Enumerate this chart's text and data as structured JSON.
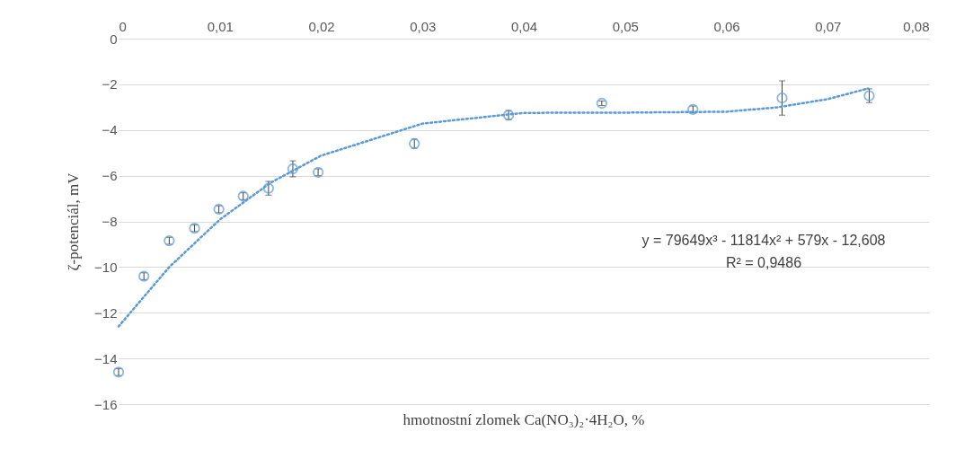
{
  "chart_data": {
    "type": "scatter",
    "xlabel": "hmotnostní zlomek Ca(NO₃)₂·4H₂O, %",
    "ylabel": "ζ-potenciál, mV",
    "x": [
      0,
      0.0025,
      0.005,
      0.0075,
      0.0099,
      0.0123,
      0.0148,
      0.0172,
      0.0197,
      0.0292,
      0.0385,
      0.0477,
      0.0567,
      0.0655,
      0.0741
    ],
    "series": [
      {
        "type": "scatter",
        "color": "#5b9bd5",
        "marker": "circle",
        "values": [
          -14.6,
          -10.4,
          -8.85,
          -8.3,
          -7.47,
          -6.9,
          -6.55,
          -5.7,
          -5.85,
          -4.6,
          -3.35,
          -2.83,
          -3.1,
          -2.6,
          -2.5
        ],
        "errors": [
          0.15,
          0.15,
          0.15,
          0.15,
          0.15,
          0.15,
          0.3,
          0.35,
          0.15,
          0.2,
          0.2,
          0.1,
          0.15,
          0.75,
          0.3
        ]
      },
      {
        "type": "line",
        "color": "#5b9bd5",
        "line_style": "dotted",
        "x": [
          0,
          0.005,
          0.01,
          0.015,
          0.02,
          0.03,
          0.04,
          0.05,
          0.06,
          0.065,
          0.07,
          0.074
        ],
        "values": [
          -12.6,
          -10.0,
          -7.92,
          -6.31,
          -5.12,
          -3.72,
          -3.25,
          -3.24,
          -3.2,
          -3.01,
          -2.65,
          -2.18
        ]
      }
    ],
    "xlim": [
      0,
      0.08
    ],
    "xticks": [
      0,
      {
        "value": 0.01,
        "label": "0,01"
      },
      {
        "value": 0.02,
        "label": "0,02"
      },
      {
        "value": 0.03,
        "label": "0,03"
      },
      {
        "value": 0.04,
        "label": "0,04"
      },
      {
        "value": 0.05,
        "label": "0,05"
      },
      {
        "value": 0.06,
        "label": "0,06"
      },
      {
        "value": 0.07,
        "label": "0,07"
      },
      {
        "value": 0.08,
        "label": "0,08"
      }
    ],
    "ylim": [
      -16,
      0
    ],
    "yticks": [
      -16,
      -14,
      -12,
      -10,
      -8,
      -6,
      -4,
      -2,
      0
    ],
    "grid": "y",
    "annotations": [
      "y = 79649x³ - 11814x² + 579x - 12,608",
      "R² = 0,9486"
    ]
  }
}
